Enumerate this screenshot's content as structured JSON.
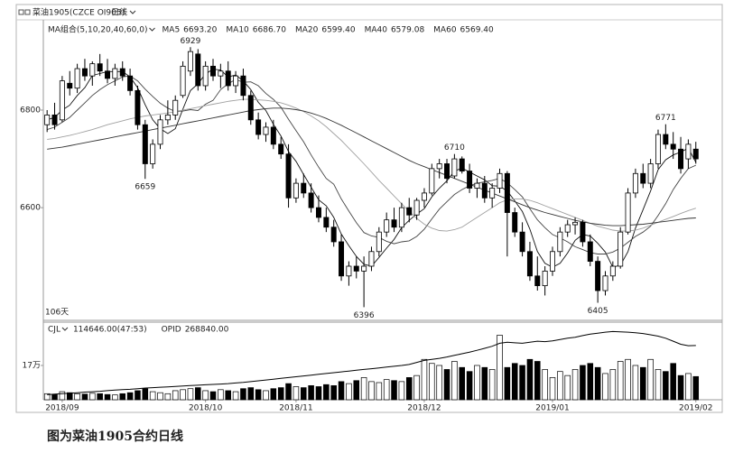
{
  "caption": "图为菜油1905合约日线",
  "chart_data": {
    "type": "candlestick",
    "title": "菜油1905(CZCE OI905)",
    "period": "日线",
    "ma_label": "MA组合(5,10,20,40,60,0)",
    "days_label": "106天",
    "up_color": "#ffffff",
    "down_color": "#000000",
    "categories": [
      null,
      null,
      "2018/09",
      null,
      null,
      null,
      null,
      null,
      null,
      null,
      null,
      null,
      null,
      null,
      null,
      null,
      null,
      null,
      null,
      null,
      null,
      "2018/10",
      null,
      null,
      null,
      null,
      null,
      null,
      null,
      null,
      null,
      null,
      null,
      "2018/11",
      null,
      null,
      null,
      null,
      null,
      null,
      null,
      null,
      null,
      null,
      null,
      null,
      null,
      null,
      null,
      null,
      "2018/12",
      null,
      null,
      null,
      null,
      null,
      null,
      null,
      null,
      null,
      null,
      null,
      null,
      null,
      null,
      null,
      null,
      "2019/01",
      null,
      null,
      null,
      null,
      null,
      null,
      null,
      null,
      null,
      null,
      null,
      null,
      null,
      null,
      null,
      null,
      null,
      null,
      "2019/02"
    ],
    "open": [
      6770,
      6790,
      6780,
      6855,
      6845,
      6885,
      6870,
      6895,
      6880,
      6865,
      6885,
      6870,
      6840,
      6770,
      6690,
      6730,
      6780,
      6790,
      6830,
      6880,
      6915,
      6850,
      6890,
      6870,
      6880,
      6850,
      6870,
      6830,
      6780,
      6750,
      6765,
      6730,
      6710,
      6620,
      6650,
      6630,
      6600,
      6580,
      6560,
      6530,
      6460,
      6480,
      6470,
      6480,
      6510,
      6550,
      6575,
      6560,
      6600,
      6585,
      6615,
      6630,
      6680,
      6690,
      6665,
      6700,
      6675,
      6640,
      6650,
      6620,
      6640,
      6670,
      6590,
      6550,
      6510,
      6460,
      6440,
      6470,
      6510,
      6550,
      6565,
      6570,
      6530,
      6490,
      6430,
      6460,
      6480,
      6550,
      6630,
      6670,
      6650,
      6690,
      6750,
      6730,
      6720,
      6700,
      6720
    ],
    "high": [
      6800,
      6815,
      6870,
      6880,
      6895,
      6905,
      6900,
      6915,
      6905,
      6895,
      6900,
      6885,
      6850,
      6780,
      6740,
      6790,
      6820,
      6830,
      6900,
      6929,
      6925,
      6900,
      6905,
      6895,
      6900,
      6880,
      6885,
      6840,
      6795,
      6775,
      6780,
      6745,
      6730,
      6660,
      6670,
      6650,
      6625,
      6600,
      6575,
      6545,
      6490,
      6500,
      6500,
      6520,
      6560,
      6590,
      6600,
      6610,
      6620,
      6620,
      6640,
      6690,
      6700,
      6700,
      6710,
      6705,
      6690,
      6660,
      6665,
      6650,
      6680,
      6675,
      6600,
      6570,
      6530,
      6500,
      6480,
      6520,
      6560,
      6575,
      6580,
      6575,
      6545,
      6500,
      6470,
      6490,
      6560,
      6640,
      6680,
      6690,
      6700,
      6760,
      6771,
      6755,
      6745,
      6740,
      6735
    ],
    "low": [
      6755,
      6760,
      6775,
      6830,
      6835,
      6860,
      6850,
      6870,
      6855,
      6850,
      6860,
      6830,
      6760,
      6659,
      6680,
      6720,
      6770,
      6780,
      6825,
      6870,
      6840,
      6840,
      6860,
      6845,
      6840,
      6835,
      6820,
      6770,
      6740,
      6735,
      6720,
      6700,
      6600,
      6610,
      6620,
      6590,
      6570,
      6550,
      6520,
      6450,
      6440,
      6455,
      6396,
      6470,
      6500,
      6540,
      6550,
      6550,
      6570,
      6575,
      6600,
      6625,
      6660,
      6650,
      6660,
      6670,
      6630,
      6620,
      6610,
      6600,
      6630,
      6500,
      6540,
      6500,
      6450,
      6430,
      6420,
      6460,
      6500,
      6540,
      6545,
      6520,
      6480,
      6405,
      6420,
      6450,
      6475,
      6545,
      6620,
      6640,
      6640,
      6680,
      6720,
      6700,
      6670,
      6680,
      6690
    ],
    "close": [
      6790,
      6770,
      6860,
      6845,
      6885,
      6870,
      6895,
      6880,
      6865,
      6885,
      6870,
      6840,
      6770,
      6690,
      6730,
      6780,
      6790,
      6820,
      6890,
      6920,
      6850,
      6890,
      6870,
      6880,
      6850,
      6870,
      6830,
      6780,
      6750,
      6765,
      6730,
      6710,
      6620,
      6650,
      6630,
      6600,
      6580,
      6560,
      6530,
      6460,
      6480,
      6470,
      6480,
      6510,
      6550,
      6575,
      6560,
      6600,
      6585,
      6615,
      6630,
      6680,
      6690,
      6660,
      6700,
      6675,
      6640,
      6650,
      6620,
      6640,
      6670,
      6590,
      6550,
      6510,
      6460,
      6440,
      6470,
      6510,
      6550,
      6565,
      6570,
      6530,
      6490,
      6430,
      6460,
      6480,
      6550,
      6630,
      6670,
      6650,
      6690,
      6750,
      6730,
      6720,
      6680,
      6730,
      6700
    ],
    "ylim": [
      6369,
      6985
    ],
    "yticks": [
      6800,
      6600
    ],
    "annotations": [
      "6929",
      "6659",
      "6396",
      "6710",
      "6405",
      "6771"
    ],
    "series": [
      {
        "name": "MA5",
        "color": "#111111",
        "legend_value": "6693.20",
        "values": [
          6780,
          6785,
          6800,
          6810,
          6830,
          6846,
          6871,
          6875,
          6879,
          6879,
          6879,
          6868,
          6846,
          6811,
          6780,
          6762,
          6752,
          6762,
          6802,
          6840,
          6854,
          6874,
          6884,
          6882,
          6868,
          6872,
          6860,
          6842,
          6816,
          6799,
          6771,
          6747,
          6715,
          6695,
          6668,
          6642,
          6616,
          6604,
          6580,
          6546,
          6522,
          6500,
          6484,
          6480,
          6498,
          6517,
          6535,
          6559,
          6574,
          6587,
          6598,
          6622,
          6640,
          6655,
          6675,
          6681,
          6673,
          6665,
          6657,
          6645,
          6644,
          6634,
          6614,
          6592,
          6556,
          6510,
          6486,
          6478,
          6486,
          6507,
          6533,
          6545,
          6542,
          6527,
          6509,
          6478,
          6482,
          6510,
          6558,
          6596,
          6634,
          6678,
          6698,
          6708,
          6714,
          6722,
          6693
        ]
      },
      {
        "name": "MA10",
        "color": "#444444",
        "legend_value": "6686.70",
        "values": [
          6760,
          6765,
          6775,
          6785,
          6800,
          6815,
          6830,
          6842,
          6852,
          6860,
          6868,
          6870,
          6860,
          6843,
          6828,
          6814,
          6804,
          6797,
          6798,
          6801,
          6799,
          6812,
          6820,
          6842,
          6854,
          6863,
          6857,
          6858,
          6850,
          6834,
          6822,
          6806,
          6781,
          6758,
          6735,
          6708,
          6683,
          6660,
          6648,
          6618,
          6593,
          6569,
          6549,
          6542,
          6539,
          6531,
          6526,
          6530,
          6532,
          6541,
          6556,
          6577,
          6597,
          6612,
          6627,
          6637,
          6645,
          6650,
          6653,
          6656,
          6660,
          6651,
          6637,
          6622,
          6598,
          6575,
          6559,
          6545,
          6538,
          6530,
          6520,
          6514,
          6508,
          6505,
          6505,
          6509,
          6517,
          6529,
          6541,
          6550,
          6562,
          6584,
          6608,
          6637,
          6660,
          6680,
          6687
        ]
      },
      {
        "name": "MA20",
        "color": "#a0a0a0",
        "legend_value": "6599.40",
        "values": [
          6740,
          6742,
          6745,
          6748,
          6752,
          6756,
          6760,
          6765,
          6770,
          6774,
          6778,
          6782,
          6785,
          6788,
          6790,
          6792,
          6794,
          6797,
          6800,
          6803,
          6806,
          6809,
          6812,
          6815,
          6818,
          6820,
          6822,
          6822,
          6821,
          6820,
          6818,
          6815,
          6810,
          6804,
          6797,
          6788,
          6778,
          6766,
          6752,
          6738,
          6722,
          6706,
          6690,
          6673,
          6656,
          6640,
          6624,
          6608,
          6592,
          6578,
          6566,
          6558,
          6553,
          6552,
          6555,
          6560,
          6570,
          6580,
          6590,
          6600,
          6610,
          6616,
          6618,
          6618,
          6615,
          6610,
          6604,
          6598,
          6592,
          6586,
          6580,
          6574,
          6568,
          6562,
          6558,
          6554,
          6552,
          6552,
          6554,
          6558,
          6564,
          6570,
          6576,
          6582,
          6588,
          6594,
          6599
        ]
      },
      {
        "name": "MA40",
        "color": "#333333",
        "legend_value": "6579.08",
        "values": [
          6720,
          6722,
          6724,
          6727,
          6730,
          6733,
          6736,
          6739,
          6742,
          6745,
          6748,
          6751,
          6754,
          6757,
          6760,
          6763,
          6766,
          6769,
          6772,
          6775,
          6778,
          6781,
          6784,
          6787,
          6790,
          6793,
          6796,
          6799,
          6801,
          6803,
          6804,
          6804,
          6803,
          6801,
          6798,
          6794,
          6789,
          6783,
          6776,
          6769,
          6761,
          6753,
          6745,
          6737,
          6729,
          6721,
          6713,
          6705,
          6697,
          6690,
          6684,
          6678,
          6672,
          6666,
          6660,
          6654,
          6648,
          6642,
          6636,
          6630,
          6624,
          6618,
          6612,
          6606,
          6600,
          6595,
          6590,
          6586,
          6582,
          6578,
          6574,
          6571,
          6568,
          6566,
          6564,
          6563,
          6563,
          6564,
          6565,
          6566,
          6568,
          6570,
          6572,
          6574,
          6576,
          6578,
          6579
        ]
      }
    ],
    "hidden_series": [
      {
        "name": "MA60",
        "color": "#bbbbbb",
        "legend_value": "6569.40"
      }
    ],
    "volume": {
      "label": "CJL",
      "legend_value": "114646.00(47:53)",
      "ylim": [
        0,
        380000
      ],
      "yticks": [
        {
          "value": 170000,
          "label": "17万"
        }
      ],
      "values": [
        30000,
        25000,
        40000,
        35000,
        30000,
        28000,
        32000,
        30000,
        26000,
        24000,
        30000,
        35000,
        45000,
        55000,
        40000,
        35000,
        30000,
        45000,
        50000,
        55000,
        60000,
        45000,
        40000,
        50000,
        45000,
        40000,
        55000,
        60000,
        50000,
        45000,
        55000,
        60000,
        80000,
        65000,
        60000,
        70000,
        65000,
        75000,
        70000,
        90000,
        80000,
        95000,
        110000,
        90000,
        85000,
        100000,
        95000,
        90000,
        110000,
        120000,
        200000,
        180000,
        170000,
        150000,
        190000,
        160000,
        140000,
        170000,
        160000,
        150000,
        320000,
        160000,
        180000,
        170000,
        200000,
        190000,
        150000,
        110000,
        140000,
        120000,
        150000,
        170000,
        180000,
        160000,
        130000,
        150000,
        190000,
        200000,
        170000,
        160000,
        200000,
        150000,
        140000,
        180000,
        120000,
        130000,
        115000
      ]
    },
    "opi": {
      "name": "OPID",
      "legend_value": "268840.00",
      "color": "#000000",
      "values": [
        25000,
        28000,
        30000,
        32000,
        35000,
        38000,
        40000,
        42000,
        45000,
        48000,
        50000,
        52000,
        55000,
        58000,
        60000,
        62000,
        64000,
        66000,
        68000,
        70000,
        72000,
        74000,
        76000,
        78000,
        80000,
        83000,
        86000,
        90000,
        94000,
        98000,
        102000,
        106000,
        110000,
        114000,
        118000,
        122000,
        126000,
        130000,
        134000,
        138000,
        142000,
        146000,
        150000,
        154000,
        158000,
        162000,
        166000,
        170000,
        175000,
        185000,
        195000,
        200000,
        205000,
        212000,
        220000,
        228000,
        236000,
        245000,
        255000,
        265000,
        280000,
        285000,
        282000,
        280000,
        285000,
        290000,
        288000,
        292000,
        298000,
        305000,
        310000,
        318000,
        325000,
        330000,
        335000,
        338000,
        336000,
        335000,
        332000,
        328000,
        322000,
        315000,
        305000,
        290000,
        275000,
        268000,
        268840
      ]
    }
  }
}
